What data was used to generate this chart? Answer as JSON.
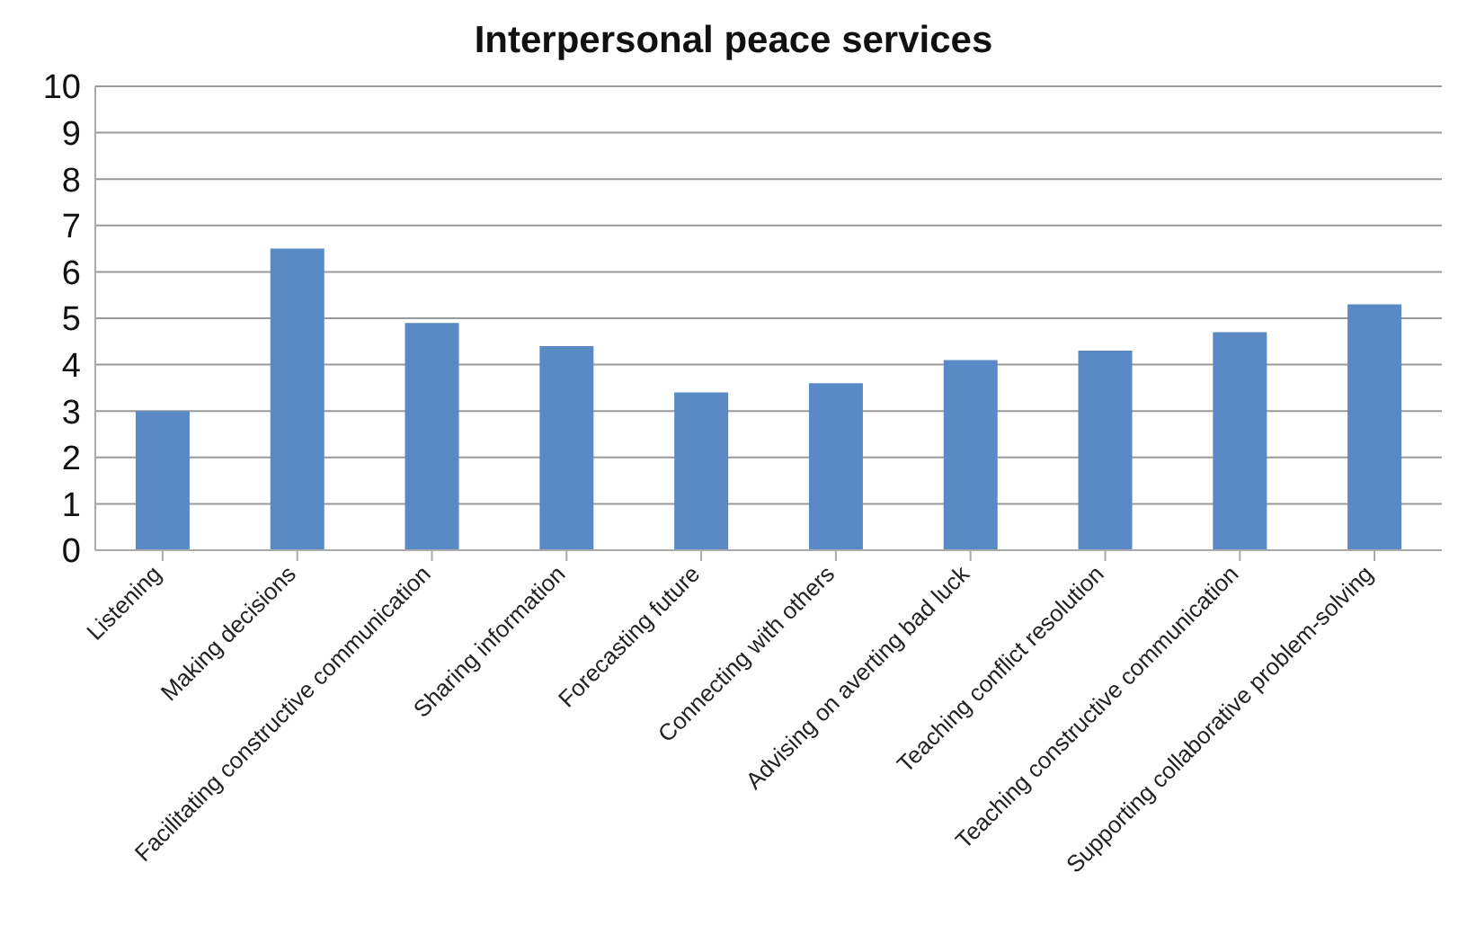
{
  "chart_data": {
    "type": "bar",
    "title": "Interpersonal peace services",
    "categories": [
      "Listening",
      "Making decisions",
      "Facilitating constructive communication",
      "Sharing information",
      "Forecasting future",
      "Connecting with others",
      "Advising on averting bad luck",
      "Teaching conflict resolution",
      "Teaching constructive communication",
      "Supporting collaborative problem-solving"
    ],
    "values": [
      3.0,
      6.5,
      4.9,
      4.4,
      3.4,
      3.6,
      4.1,
      4.3,
      4.7,
      5.3
    ],
    "color": "#5a8ac6",
    "ylim": [
      0,
      10
    ],
    "yticks": [
      0,
      1,
      2,
      3,
      4,
      5,
      6,
      7,
      8,
      9,
      10
    ],
    "grid": "y",
    "legend": false
  }
}
